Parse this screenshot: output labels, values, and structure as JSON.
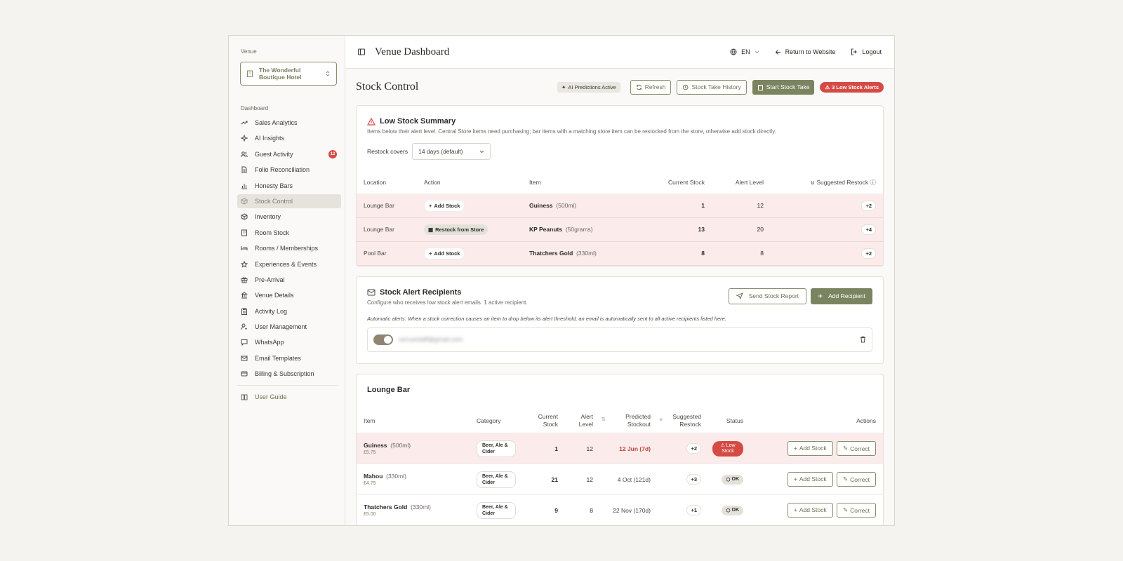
{
  "sidebar": {
    "venue_label": "Venue",
    "venue_name": "The Wonderful Boutique Hotel",
    "section_label": "Dashboard",
    "items": [
      {
        "label": "Sales Analytics",
        "icon": "trending-up-icon"
      },
      {
        "label": "AI Insights",
        "icon": "sparkles-icon"
      },
      {
        "label": "Guest Activity",
        "icon": "users-icon",
        "badge": "12"
      },
      {
        "label": "Folio Reconciliation",
        "icon": "file-icon"
      },
      {
        "label": "Honesty Bars",
        "icon": "bar-chart-icon"
      },
      {
        "label": "Stock Control",
        "icon": "package-icon",
        "active": true
      },
      {
        "label": "Inventory",
        "icon": "box-icon"
      },
      {
        "label": "Room Stock",
        "icon": "building-icon"
      },
      {
        "label": "Rooms / Memberships",
        "icon": "bed-icon"
      },
      {
        "label": "Experiences & Events",
        "icon": "star-icon"
      },
      {
        "label": "Pre-Arrival",
        "icon": "gift-icon"
      },
      {
        "label": "Venue Details",
        "icon": "landmark-icon"
      },
      {
        "label": "Activity Log",
        "icon": "clipboard-icon"
      },
      {
        "label": "User Management",
        "icon": "user-cog-icon"
      },
      {
        "label": "WhatsApp",
        "icon": "message-icon"
      },
      {
        "label": "Email Templates",
        "icon": "mail-icon"
      },
      {
        "label": "Billing & Subscription",
        "icon": "credit-card-icon"
      }
    ],
    "footer_item": "User Guide"
  },
  "topbar": {
    "title": "Venue Dashboard",
    "language": "EN",
    "return_label": "Return to Website",
    "logout_label": "Logout"
  },
  "page": {
    "title": "Stock Control",
    "ai_pill": "AI Predictions Active",
    "refresh": "Refresh",
    "history": "Stock Take History",
    "start": "Start Stock Take",
    "alerts": "3 Low Stock Alerts"
  },
  "low_stock": {
    "title": "Low Stock Summary",
    "subtitle": "Items below their alert level. Central Store items need purchasing; bar items with a matching store item can be restocked from the store, otherwise add stock directly.",
    "restock_label": "Restock covers",
    "restock_value": "14 days (default)",
    "columns": [
      "Location",
      "Action",
      "Item",
      "Current Stock",
      "Alert Level",
      "Suggested Restock"
    ],
    "rows": [
      {
        "location": "Lounge Bar",
        "action": "Add Stock",
        "item": "Guiness",
        "size": "(500ml)",
        "current": "1",
        "alert": "12",
        "restock": "+2"
      },
      {
        "location": "Lounge Bar",
        "action": "Restock from Store",
        "item": "KP Peanuts",
        "size": "(50grams)",
        "current": "13",
        "alert": "20",
        "restock": "+4"
      },
      {
        "location": "Pool Bar",
        "action": "Add Stock",
        "item": "Thatchers Gold",
        "size": "(330ml)",
        "current": "8",
        "alert": "8",
        "restock": "+2"
      }
    ]
  },
  "recipients": {
    "title": "Stock Alert Recipients",
    "subtitle": "Configure who receives low stock alert emails. 1 active recipient.",
    "send_label": "Send Stock Report",
    "add_label": "Add Recipient",
    "note": "Automatic alerts: When a stock correction causes an item to drop below its alert threshold, an email is automatically sent to all active recipients listed here.",
    "email": "venuestaff@gmail.com"
  },
  "lounge": {
    "title": "Lounge Bar",
    "columns": {
      "item": "Item",
      "category": "Category",
      "current": "Current Stock",
      "alert": "Alert Level",
      "predicted": "Predicted Stockout",
      "suggested": "Suggested Restock",
      "status": "Status",
      "actions": "Actions"
    },
    "add_label": "Add Stock",
    "correct_label": "Correct",
    "rows": [
      {
        "name": "Guiness",
        "size": "(500ml)",
        "price": "£5.75",
        "category": "Beer, Ale & Cider",
        "current": "1",
        "alert": "12",
        "predicted": "12 Jun (7d)",
        "suggested": "+2",
        "status": "Low Stock",
        "low": true
      },
      {
        "name": "Mahou",
        "size": "(330ml)",
        "price": "£4.75",
        "category": "Beer, Ale & Cider",
        "current": "21",
        "alert": "12",
        "predicted": "4 Oct (121d)",
        "suggested": "+3",
        "status": "OK",
        "low": false
      },
      {
        "name": "Thatchers Gold",
        "size": "(330ml)",
        "price": "£5.00",
        "category": "Beer, Ale & Cider",
        "current": "9",
        "alert": "8",
        "predicted": "22 Nov (170d)",
        "suggested": "+1",
        "status": "OK",
        "low": false
      }
    ]
  }
}
